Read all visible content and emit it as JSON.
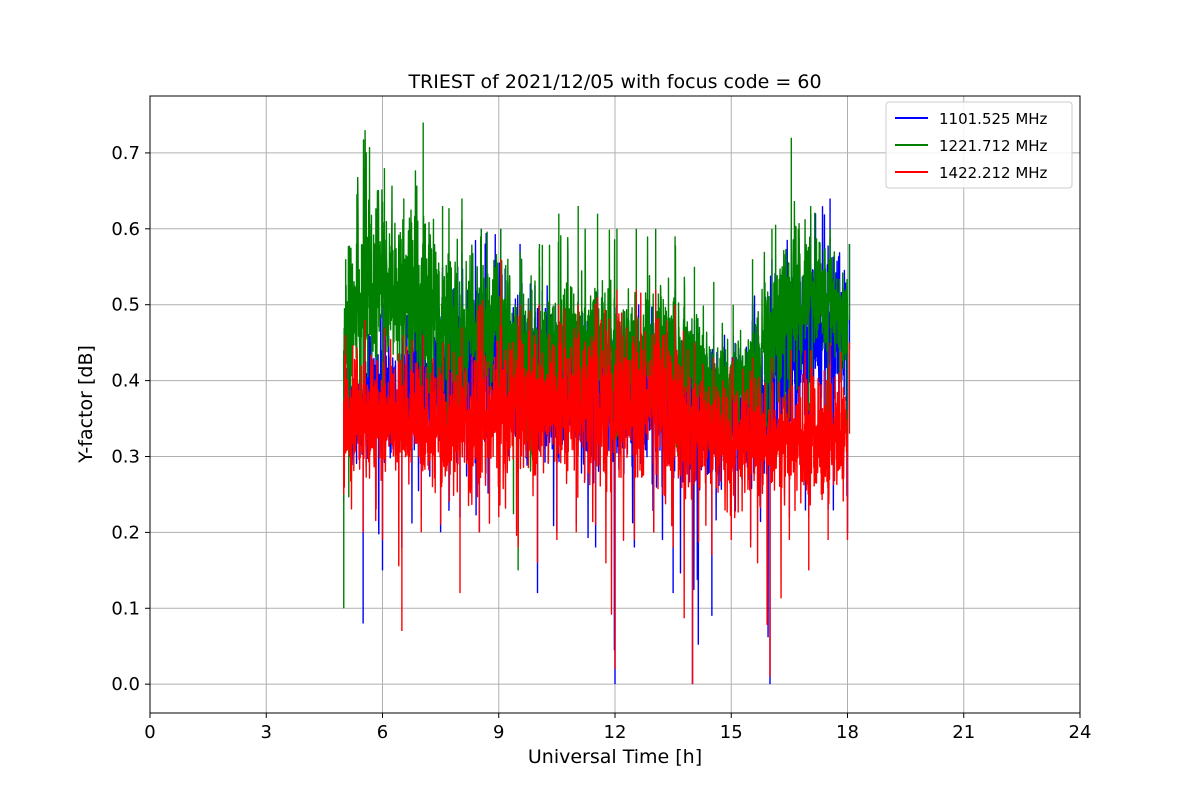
{
  "chart_data": {
    "type": "line",
    "title": "TRIEST of 2021/12/05 with focus code = 60",
    "xlabel": "Universal Time [h]",
    "ylabel": "Y-factor [dB]",
    "xlim": [
      0,
      24
    ],
    "ylim": [
      -0.038,
      0.775
    ],
    "xticks": [
      0,
      3,
      6,
      9,
      12,
      15,
      18,
      21,
      24
    ],
    "xtick_labels": [
      "0",
      "3",
      "6",
      "9",
      "12",
      "15",
      "18",
      "21",
      "24"
    ],
    "yticks": [
      0.0,
      0.1,
      0.2,
      0.3,
      0.4,
      0.5,
      0.6,
      0.7
    ],
    "ytick_labels": [
      "0.0",
      "0.1",
      "0.2",
      "0.3",
      "0.4",
      "0.5",
      "0.6",
      "0.7"
    ],
    "grid": true,
    "legend_position": "top-right",
    "series": [
      {
        "name": "1101.525 MHz",
        "color": "#0000ff",
        "x": [
          5.0,
          5.5,
          6.0,
          6.5,
          7.0,
          7.5,
          8.0,
          8.5,
          9.0,
          9.5,
          10.0,
          10.5,
          11.0,
          11.5,
          12.0,
          12.5,
          13.0,
          13.5,
          14.0,
          14.5,
          15.0,
          15.5,
          16.0,
          16.5,
          17.0,
          17.5,
          18.0
        ],
        "mean": [
          0.37,
          0.37,
          0.38,
          0.39,
          0.4,
          0.4,
          0.42,
          0.43,
          0.44,
          0.41,
          0.39,
          0.38,
          0.38,
          0.37,
          0.37,
          0.38,
          0.38,
          0.37,
          0.35,
          0.34,
          0.34,
          0.35,
          0.38,
          0.43,
          0.46,
          0.47,
          0.44
        ],
        "min": [
          0.24,
          0.08,
          0.15,
          0.18,
          0.22,
          0.2,
          0.22,
          0.2,
          0.25,
          0.2,
          0.12,
          0.2,
          0.21,
          0.18,
          0.0,
          0.18,
          0.2,
          0.12,
          0.0,
          0.09,
          0.2,
          0.19,
          0.0,
          0.22,
          0.22,
          0.23,
          0.2
        ],
        "max": [
          0.47,
          0.5,
          0.51,
          0.52,
          0.54,
          0.55,
          0.57,
          0.6,
          0.6,
          0.58,
          0.55,
          0.52,
          0.52,
          0.52,
          0.5,
          0.5,
          0.52,
          0.52,
          0.48,
          0.46,
          0.46,
          0.5,
          0.56,
          0.6,
          0.62,
          0.64,
          0.58
        ]
      },
      {
        "name": "1221.712 MHz",
        "color": "#008000",
        "x": [
          5.0,
          5.5,
          6.0,
          6.5,
          7.0,
          7.5,
          8.0,
          8.5,
          9.0,
          9.5,
          10.0,
          10.5,
          11.0,
          11.5,
          12.0,
          12.5,
          13.0,
          13.5,
          14.0,
          14.5,
          15.0,
          15.5,
          16.0,
          16.5,
          17.0,
          17.5,
          18.0
        ],
        "mean": [
          0.44,
          0.52,
          0.53,
          0.5,
          0.52,
          0.47,
          0.45,
          0.47,
          0.48,
          0.43,
          0.41,
          0.44,
          0.45,
          0.44,
          0.43,
          0.43,
          0.44,
          0.43,
          0.42,
          0.39,
          0.38,
          0.4,
          0.45,
          0.5,
          0.52,
          0.51,
          0.48
        ],
        "min": [
          0.1,
          0.3,
          0.3,
          0.3,
          0.32,
          0.3,
          0.3,
          0.32,
          0.3,
          0.15,
          0.3,
          0.3,
          0.32,
          0.3,
          0.3,
          0.3,
          0.32,
          0.3,
          0.3,
          0.28,
          0.28,
          0.3,
          0.3,
          0.35,
          0.36,
          0.35,
          0.3
        ],
        "max": [
          0.56,
          0.73,
          0.68,
          0.64,
          0.74,
          0.63,
          0.64,
          0.6,
          0.6,
          0.57,
          0.58,
          0.62,
          0.63,
          0.62,
          0.6,
          0.6,
          0.6,
          0.59,
          0.55,
          0.53,
          0.5,
          0.56,
          0.6,
          0.72,
          0.63,
          0.6,
          0.58
        ]
      },
      {
        "name": "1422.212 MHz",
        "color": "#ff0000",
        "x": [
          5.0,
          5.5,
          6.0,
          6.5,
          7.0,
          7.5,
          8.0,
          8.5,
          9.0,
          9.5,
          10.0,
          10.5,
          11.0,
          11.5,
          12.0,
          12.5,
          13.0,
          13.5,
          14.0,
          14.5,
          15.0,
          15.5,
          16.0,
          16.5,
          17.0,
          17.5,
          18.0
        ],
        "mean": [
          0.36,
          0.35,
          0.35,
          0.35,
          0.35,
          0.34,
          0.34,
          0.35,
          0.36,
          0.37,
          0.36,
          0.37,
          0.37,
          0.37,
          0.37,
          0.37,
          0.37,
          0.36,
          0.33,
          0.32,
          0.32,
          0.32,
          0.32,
          0.32,
          0.32,
          0.33,
          0.33
        ],
        "min": [
          0.25,
          0.2,
          0.19,
          0.07,
          0.2,
          0.21,
          0.12,
          0.2,
          0.22,
          0.18,
          0.16,
          0.19,
          0.2,
          0.21,
          0.02,
          0.19,
          0.2,
          0.18,
          0.0,
          0.17,
          0.19,
          0.18,
          0.01,
          0.19,
          0.15,
          0.19,
          0.19
        ],
        "max": [
          0.46,
          0.48,
          0.47,
          0.46,
          0.46,
          0.45,
          0.47,
          0.5,
          0.56,
          0.5,
          0.5,
          0.5,
          0.5,
          0.51,
          0.52,
          0.52,
          0.52,
          0.5,
          0.45,
          0.43,
          0.43,
          0.43,
          0.43,
          0.44,
          0.44,
          0.45,
          0.45
        ]
      }
    ]
  }
}
